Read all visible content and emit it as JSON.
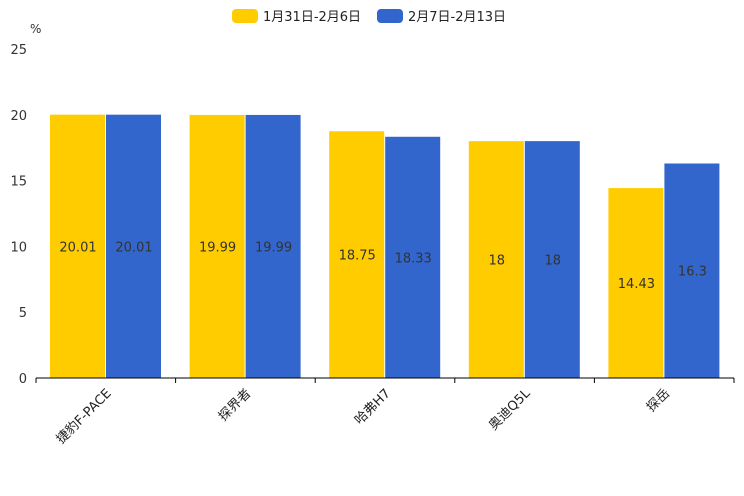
{
  "chart_data": {
    "type": "bar",
    "ylabel": "%",
    "ylim": [
      0,
      25
    ],
    "yticks": [
      0,
      5,
      10,
      15,
      20,
      25
    ],
    "categories": [
      "捷豹F-PACE",
      "探界者",
      "哈弗H7",
      "奥迪Q5L",
      "探岳"
    ],
    "series": [
      {
        "name": "1月31日-2月6日",
        "color": "#FFCC00",
        "values": [
          20.01,
          19.99,
          18.75,
          18,
          14.43
        ],
        "labels": [
          "20.01",
          "19.99",
          "18.75",
          "18",
          "14.43"
        ]
      },
      {
        "name": "2月7日-2月13日",
        "color": "#3366CC",
        "values": [
          20.01,
          19.99,
          18.33,
          18,
          16.3
        ],
        "labels": [
          "20.01",
          "19.99",
          "18.33",
          "18",
          "16.3"
        ]
      }
    ],
    "legend": "top-center",
    "grid": false
  }
}
